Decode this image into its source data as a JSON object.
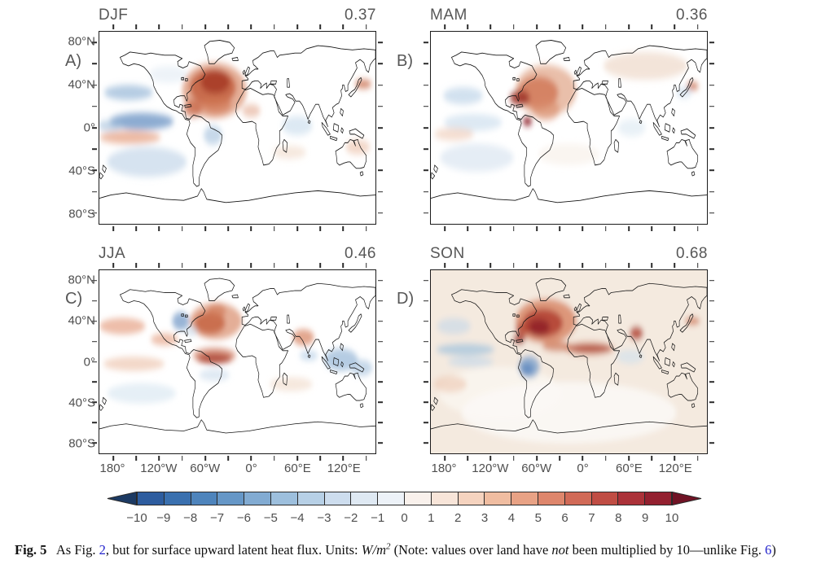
{
  "figure": {
    "panels": [
      {
        "letter": "A)",
        "season": "DJF",
        "score": "0.37"
      },
      {
        "letter": "B)",
        "season": "MAM",
        "score": "0.36"
      },
      {
        "letter": "C)",
        "season": "JJA",
        "score": "0.46"
      },
      {
        "letter": "D)",
        "season": "SON",
        "score": "0.68"
      }
    ],
    "y_axis": {
      "tick_labels": [
        "80°N",
        "40°N",
        "0°",
        "40°S",
        "80°S"
      ]
    },
    "x_axis": {
      "tick_labels": [
        "180°",
        "120°W",
        "60°W",
        "0°",
        "60°E",
        "120°E"
      ]
    },
    "colorbar": {
      "tick_labels": [
        "−10",
        "−9",
        "−8",
        "−7",
        "−6",
        "−5",
        "−4",
        "−3",
        "−2",
        "−1",
        "0",
        "1",
        "2",
        "3",
        "4",
        "5",
        "6",
        "7",
        "8",
        "9",
        "10"
      ],
      "segment_colors": [
        "#2e5d9f",
        "#3a70af",
        "#4e84bc",
        "#6697c7",
        "#82abd2",
        "#9dbfdd",
        "#b7d0e6",
        "#cdddee",
        "#dfe9f3",
        "#edf2f8",
        "#f9f1ec",
        "#f8e5d9",
        "#f5d3bf",
        "#f0bda1",
        "#e8a285",
        "#de866c",
        "#d16a57",
        "#c04d44",
        "#ab3239",
        "#93202f"
      ],
      "arrow_left_color": "#1c3a63",
      "arrow_right_color": "#701325"
    },
    "caption": {
      "parts": [
        {
          "text": "Fig. 5",
          "style": "bold"
        },
        {
          "text": "   As Fig. ",
          "style": "plain"
        },
        {
          "text": "2",
          "style": "link"
        },
        {
          "text": ", but for surface upward latent heat flux. Units: ",
          "style": "plain"
        },
        {
          "text": "W/m",
          "style": "italic"
        },
        {
          "text": "2",
          "style": "italic-sup"
        },
        {
          "text": " (Note: values over land have ",
          "style": "plain"
        },
        {
          "text": "not",
          "style": "italic"
        },
        {
          "text": " been multiplied by 10—unlike Fig. ",
          "style": "plain"
        },
        {
          "text": "6",
          "style": "link"
        },
        {
          "text": ")",
          "style": "plain"
        }
      ]
    }
  }
}
